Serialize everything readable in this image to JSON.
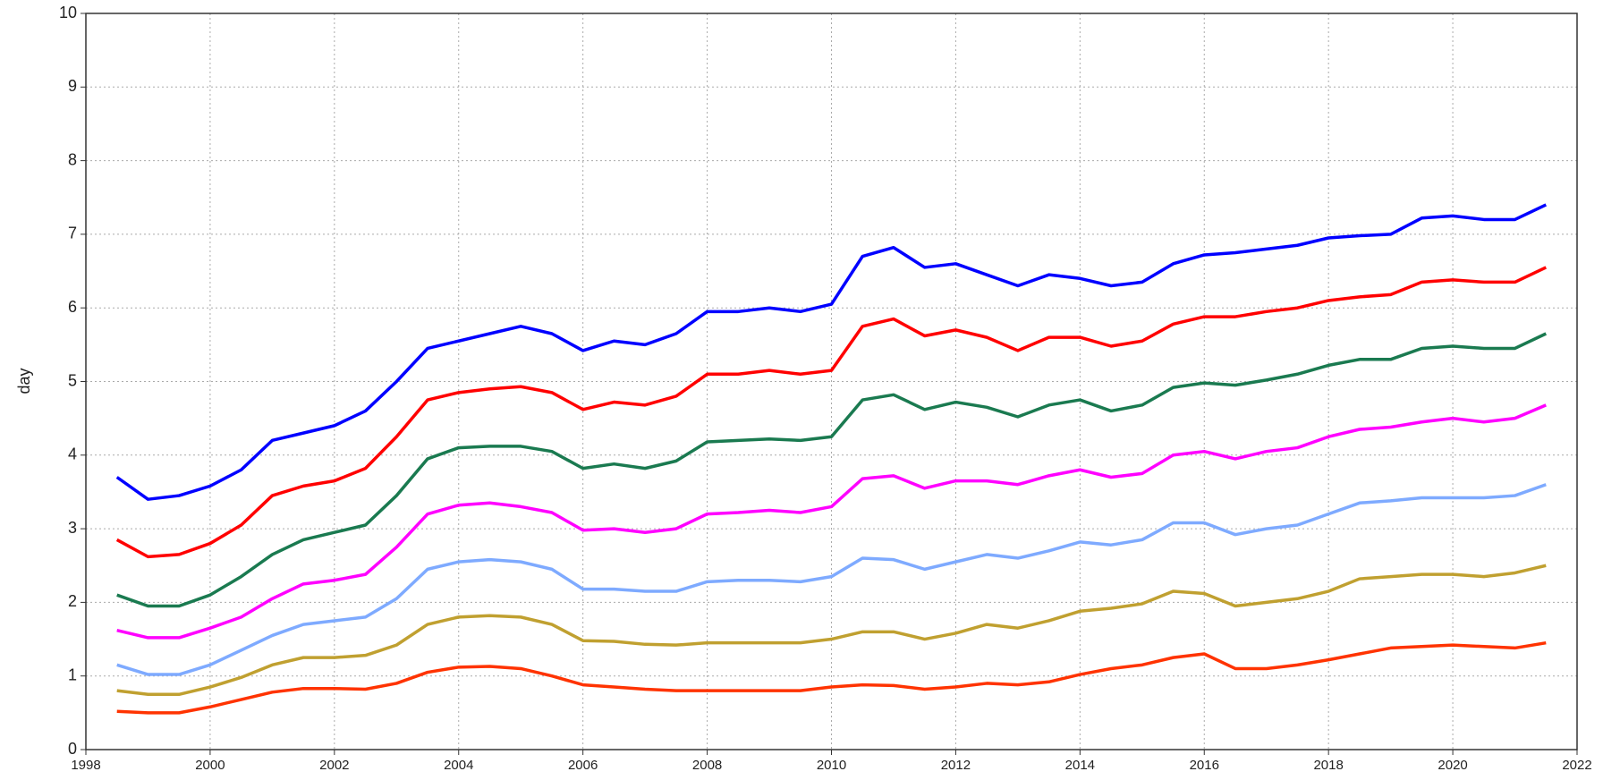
{
  "chart_data": {
    "type": "line",
    "ylabel": "day",
    "x": [
      1998.5,
      1999,
      1999.5,
      2000,
      2000.5,
      2001,
      2001.5,
      2002,
      2002.5,
      2003,
      2003.5,
      2004,
      2004.5,
      2005,
      2005.5,
      2006,
      2006.5,
      2007,
      2007.5,
      2008,
      2008.5,
      2009,
      2009.5,
      2010,
      2010.5,
      2011,
      2011.5,
      2012,
      2012.5,
      2013,
      2013.5,
      2014,
      2014.5,
      2015,
      2015.5,
      2016,
      2016.5,
      2017,
      2017.5,
      2018,
      2018.5,
      2019,
      2019.5,
      2020,
      2020.5,
      2021,
      2021.5
    ],
    "series": [
      {
        "color": "#0000ff",
        "values": [
          3.7,
          3.4,
          3.45,
          3.58,
          3.8,
          4.2,
          4.3,
          4.4,
          4.6,
          5.0,
          5.45,
          5.55,
          5.65,
          5.75,
          5.65,
          5.42,
          5.55,
          5.5,
          5.65,
          5.95,
          5.95,
          6.0,
          5.95,
          6.05,
          6.7,
          6.82,
          6.55,
          6.6,
          6.45,
          6.3,
          6.45,
          6.4,
          6.3,
          6.35,
          6.6,
          6.72,
          6.75,
          6.8,
          6.85,
          6.95,
          6.98,
          7.0,
          7.22,
          7.25,
          7.2,
          7.2,
          7.4
        ]
      },
      {
        "color": "#ff0000",
        "values": [
          2.85,
          2.62,
          2.65,
          2.8,
          3.05,
          3.45,
          3.58,
          3.65,
          3.82,
          4.25,
          4.75,
          4.85,
          4.9,
          4.93,
          4.85,
          4.62,
          4.72,
          4.68,
          4.8,
          5.1,
          5.1,
          5.15,
          5.1,
          5.15,
          5.75,
          5.85,
          5.62,
          5.7,
          5.6,
          5.42,
          5.6,
          5.6,
          5.48,
          5.55,
          5.78,
          5.88,
          5.88,
          5.95,
          6.0,
          6.1,
          6.15,
          6.18,
          6.35,
          6.38,
          6.35,
          6.35,
          6.55
        ]
      },
      {
        "color": "#1a7a50",
        "values": [
          2.1,
          1.95,
          1.95,
          2.1,
          2.35,
          2.65,
          2.85,
          2.95,
          3.05,
          3.45,
          3.95,
          4.1,
          4.12,
          4.12,
          4.05,
          3.82,
          3.88,
          3.82,
          3.92,
          4.18,
          4.2,
          4.22,
          4.2,
          4.25,
          4.75,
          4.82,
          4.62,
          4.72,
          4.65,
          4.52,
          4.68,
          4.75,
          4.6,
          4.68,
          4.92,
          4.98,
          4.95,
          5.02,
          5.1,
          5.22,
          5.3,
          5.3,
          5.45,
          5.48,
          5.45,
          5.45,
          5.65
        ]
      },
      {
        "color": "#ff00ff",
        "values": [
          1.62,
          1.52,
          1.52,
          1.65,
          1.8,
          2.05,
          2.25,
          2.3,
          2.38,
          2.75,
          3.2,
          3.32,
          3.35,
          3.3,
          3.22,
          2.98,
          3.0,
          2.95,
          3.0,
          3.2,
          3.22,
          3.25,
          3.22,
          3.3,
          3.68,
          3.72,
          3.55,
          3.65,
          3.65,
          3.6,
          3.72,
          3.8,
          3.7,
          3.75,
          4.0,
          4.05,
          3.95,
          4.05,
          4.1,
          4.25,
          4.35,
          4.38,
          4.45,
          4.5,
          4.45,
          4.5,
          4.68
        ]
      },
      {
        "color": "#7eaaff",
        "values": [
          1.15,
          1.02,
          1.02,
          1.15,
          1.35,
          1.55,
          1.7,
          1.75,
          1.8,
          2.05,
          2.45,
          2.55,
          2.58,
          2.55,
          2.45,
          2.18,
          2.18,
          2.15,
          2.15,
          2.28,
          2.3,
          2.3,
          2.28,
          2.35,
          2.6,
          2.58,
          2.45,
          2.55,
          2.65,
          2.6,
          2.7,
          2.82,
          2.78,
          2.85,
          3.08,
          3.08,
          2.92,
          3.0,
          3.05,
          3.2,
          3.35,
          3.38,
          3.42,
          3.42,
          3.42,
          3.45,
          3.6
        ]
      },
      {
        "color": "#c0a030",
        "values": [
          0.8,
          0.75,
          0.75,
          0.85,
          0.98,
          1.15,
          1.25,
          1.25,
          1.28,
          1.42,
          1.7,
          1.8,
          1.82,
          1.8,
          1.7,
          1.48,
          1.47,
          1.43,
          1.42,
          1.45,
          1.45,
          1.45,
          1.45,
          1.5,
          1.6,
          1.6,
          1.5,
          1.58,
          1.7,
          1.65,
          1.75,
          1.88,
          1.92,
          1.98,
          2.15,
          2.12,
          1.95,
          2.0,
          2.05,
          2.15,
          2.32,
          2.35,
          2.38,
          2.38,
          2.35,
          2.4,
          2.5
        ]
      },
      {
        "color": "#ff3300",
        "values": [
          0.52,
          0.5,
          0.5,
          0.58,
          0.68,
          0.78,
          0.83,
          0.83,
          0.82,
          0.9,
          1.05,
          1.12,
          1.13,
          1.1,
          1.0,
          0.88,
          0.85,
          0.82,
          0.8,
          0.8,
          0.8,
          0.8,
          0.8,
          0.85,
          0.88,
          0.87,
          0.82,
          0.85,
          0.9,
          0.88,
          0.92,
          1.02,
          1.1,
          1.15,
          1.25,
          1.3,
          1.1,
          1.1,
          1.15,
          1.22,
          1.3,
          1.38,
          1.4,
          1.42,
          1.4,
          1.38,
          1.45
        ]
      }
    ],
    "xlim": [
      1998,
      2022
    ],
    "xticks": [
      1998,
      2000,
      2002,
      2004,
      2006,
      2008,
      2010,
      2012,
      2014,
      2016,
      2018,
      2020,
      2022
    ],
    "ylim": [
      0,
      10
    ],
    "yticks": [
      0,
      1,
      2,
      3,
      4,
      5,
      6,
      7,
      8,
      9,
      10
    ],
    "grid": true
  }
}
